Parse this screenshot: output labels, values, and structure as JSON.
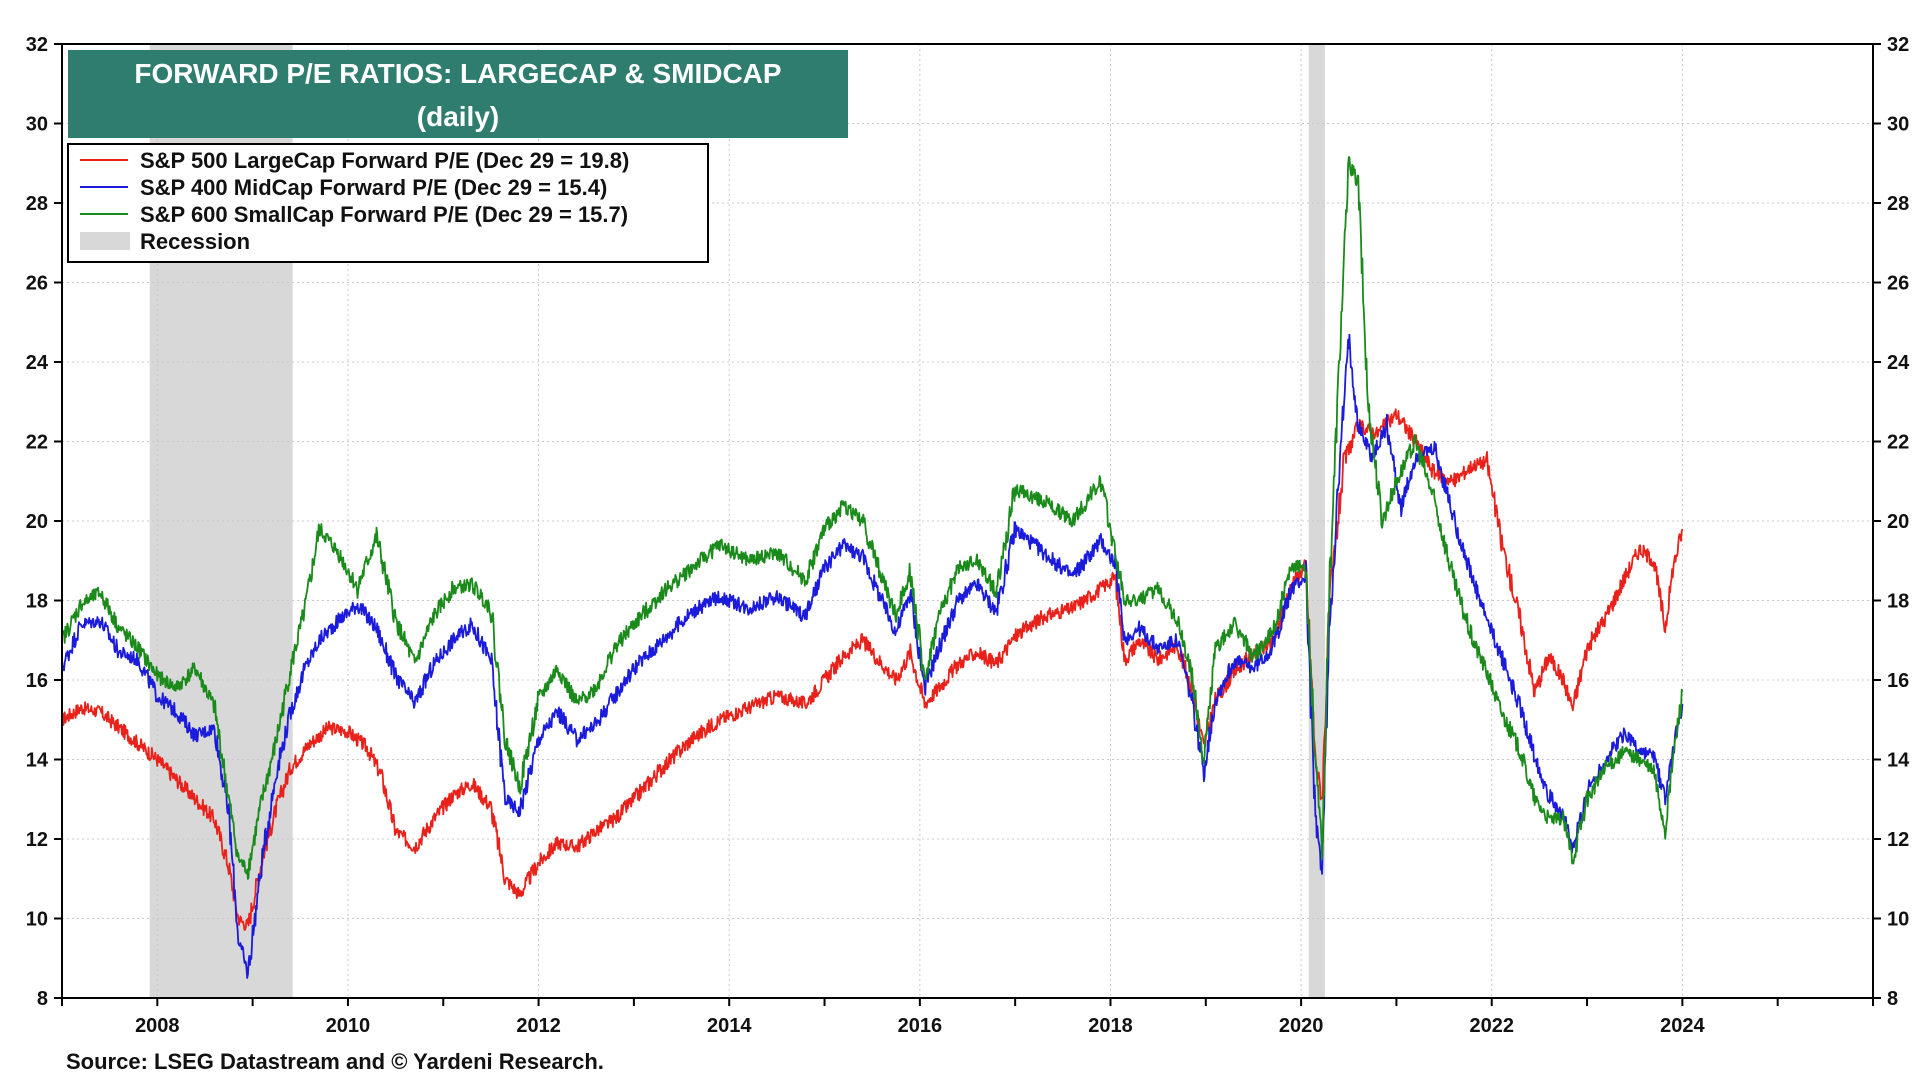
{
  "chart_data": {
    "type": "line",
    "title": "FORWARD P/E RATIOS: LARGECAP & SMIDCAP",
    "subtitle": "(daily)",
    "source": "Source: LSEG Datastream and © Yardeni Research.",
    "xlim": [
      2007.0,
      2026.0
    ],
    "ylim": [
      8,
      32
    ],
    "y_ticks": [
      8,
      10,
      12,
      14,
      16,
      18,
      20,
      22,
      24,
      26,
      28,
      30,
      32
    ],
    "x_ticks": [
      2008,
      2010,
      2012,
      2014,
      2016,
      2018,
      2020,
      2022,
      2024
    ],
    "x_tick_labels": [
      "2008",
      "2010",
      "2012",
      "2014",
      "2016",
      "2018",
      "2020",
      "2022",
      "2024"
    ],
    "grid": true,
    "legend_position": "top-left",
    "recessions": [
      {
        "start": 2007.92,
        "end": 2009.42
      },
      {
        "start": 2020.08,
        "end": 2020.25
      }
    ],
    "recession_label": "Recession",
    "recession_color": "#d8d8d8",
    "title_box_color": "#2e7d6e",
    "series": [
      {
        "name": "S&P 500 LargeCap Forward P/E (Dec 29 = 19.8)",
        "color": "#e8221b",
        "x": [
          2007.0,
          2007.2,
          2007.4,
          2007.6,
          2007.8,
          2008.0,
          2008.2,
          2008.4,
          2008.6,
          2008.75,
          2008.85,
          2008.95,
          2009.1,
          2009.25,
          2009.4,
          2009.6,
          2009.8,
          2010.0,
          2010.2,
          2010.35,
          2010.5,
          2010.7,
          2010.9,
          2011.1,
          2011.3,
          2011.5,
          2011.65,
          2011.8,
          2012.0,
          2012.2,
          2012.4,
          2012.6,
          2012.8,
          2013.0,
          2013.3,
          2013.6,
          2013.9,
          2014.2,
          2014.5,
          2014.8,
          2015.0,
          2015.2,
          2015.4,
          2015.6,
          2015.75,
          2015.9,
          2016.05,
          2016.2,
          2016.4,
          2016.6,
          2016.8,
          2017.0,
          2017.3,
          2017.6,
          2017.9,
          2018.05,
          2018.15,
          2018.3,
          2018.5,
          2018.7,
          2018.85,
          2018.98,
          2019.1,
          2019.3,
          2019.5,
          2019.7,
          2019.9,
          2020.05,
          2020.15,
          2020.22,
          2020.3,
          2020.45,
          2020.6,
          2020.8,
          2021.0,
          2021.2,
          2021.4,
          2021.6,
          2021.8,
          2021.95,
          2022.1,
          2022.3,
          2022.45,
          2022.6,
          2022.75,
          2022.85,
          2023.0,
          2023.2,
          2023.4,
          2023.55,
          2023.7,
          2023.82,
          2023.9,
          2024.0
        ],
        "values": [
          15.0,
          15.3,
          15.2,
          14.8,
          14.4,
          14.0,
          13.5,
          13.0,
          12.5,
          11.3,
          10.0,
          9.8,
          11.5,
          12.8,
          13.8,
          14.4,
          14.8,
          14.7,
          14.3,
          13.6,
          12.2,
          11.8,
          12.5,
          13.1,
          13.4,
          12.8,
          11.0,
          10.6,
          11.4,
          11.9,
          11.8,
          12.2,
          12.5,
          13.0,
          13.8,
          14.5,
          15.0,
          15.3,
          15.6,
          15.4,
          16.0,
          16.6,
          17.0,
          16.4,
          16.0,
          16.7,
          15.4,
          15.8,
          16.4,
          16.7,
          16.4,
          17.1,
          17.6,
          17.8,
          18.3,
          18.6,
          16.5,
          17.0,
          16.5,
          16.9,
          15.8,
          14.3,
          15.5,
          16.2,
          16.7,
          16.9,
          18.4,
          18.9,
          14.0,
          13.0,
          18.0,
          21.5,
          22.4,
          22.2,
          22.7,
          22.0,
          21.2,
          21.0,
          21.4,
          21.5,
          19.5,
          17.5,
          15.7,
          16.6,
          16.0,
          15.3,
          16.8,
          17.6,
          18.6,
          19.3,
          19.0,
          17.3,
          18.8,
          19.8
        ]
      },
      {
        "name": "S&P 400 MidCap Forward P/E (Dec 29 = 15.4)",
        "color": "#1b1bdb",
        "x": [
          2007.0,
          2007.2,
          2007.4,
          2007.6,
          2007.8,
          2008.0,
          2008.2,
          2008.4,
          2008.6,
          2008.75,
          2008.85,
          2008.95,
          2009.1,
          2009.25,
          2009.4,
          2009.55,
          2009.7,
          2009.9,
          2010.1,
          2010.3,
          2010.5,
          2010.7,
          2010.9,
          2011.1,
          2011.3,
          2011.5,
          2011.65,
          2011.8,
          2012.0,
          2012.2,
          2012.4,
          2012.6,
          2012.8,
          2013.0,
          2013.3,
          2013.6,
          2013.9,
          2014.2,
          2014.5,
          2014.8,
          2015.0,
          2015.2,
          2015.4,
          2015.6,
          2015.75,
          2015.9,
          2016.05,
          2016.2,
          2016.4,
          2016.6,
          2016.8,
          2017.0,
          2017.3,
          2017.6,
          2017.9,
          2018.05,
          2018.15,
          2018.3,
          2018.5,
          2018.7,
          2018.85,
          2018.98,
          2019.1,
          2019.3,
          2019.5,
          2019.7,
          2019.9,
          2020.05,
          2020.15,
          2020.22,
          2020.3,
          2020.45,
          2020.5,
          2020.6,
          2020.75,
          2020.9,
          2021.05,
          2021.2,
          2021.4,
          2021.6,
          2021.8,
          2021.95,
          2022.1,
          2022.3,
          2022.45,
          2022.6,
          2022.75,
          2022.85,
          2023.0,
          2023.2,
          2023.4,
          2023.55,
          2023.7,
          2023.82,
          2023.9,
          2024.0
        ],
        "values": [
          16.3,
          17.4,
          17.5,
          16.7,
          16.5,
          15.6,
          15.2,
          14.6,
          14.8,
          12.6,
          9.5,
          8.6,
          11.5,
          13.7,
          15.2,
          16.3,
          17.0,
          17.5,
          17.9,
          17.3,
          16.1,
          15.4,
          16.4,
          17.0,
          17.4,
          16.5,
          13.0,
          12.7,
          14.5,
          15.2,
          14.5,
          14.9,
          15.6,
          16.3,
          17.0,
          17.7,
          18.1,
          17.8,
          18.1,
          17.6,
          18.8,
          19.4,
          19.1,
          18.0,
          17.2,
          18.2,
          15.8,
          16.8,
          18.0,
          18.4,
          17.7,
          19.8,
          19.2,
          18.6,
          19.5,
          18.9,
          17.0,
          17.3,
          16.8,
          17.0,
          15.5,
          13.7,
          15.5,
          16.5,
          16.3,
          16.8,
          18.3,
          18.6,
          12.5,
          11.2,
          17.5,
          23.0,
          24.6,
          22.4,
          21.6,
          22.4,
          20.3,
          21.6,
          21.8,
          20.1,
          18.5,
          17.5,
          16.6,
          15.3,
          14.1,
          13.1,
          12.6,
          11.7,
          13.2,
          14.0,
          14.7,
          14.2,
          14.1,
          13.0,
          14.2,
          15.4
        ]
      },
      {
        "name": "S&P 600 SmallCap Forward P/E (Dec 29 = 15.7)",
        "color": "#1a8a1a",
        "x": [
          2007.0,
          2007.2,
          2007.4,
          2007.6,
          2007.8,
          2008.0,
          2008.2,
          2008.4,
          2008.6,
          2008.75,
          2008.85,
          2008.95,
          2009.1,
          2009.25,
          2009.4,
          2009.55,
          2009.7,
          2009.9,
          2010.1,
          2010.3,
          2010.5,
          2010.7,
          2010.9,
          2011.1,
          2011.3,
          2011.5,
          2011.65,
          2011.8,
          2012.0,
          2012.2,
          2012.4,
          2012.6,
          2012.8,
          2013.0,
          2013.3,
          2013.6,
          2013.9,
          2014.2,
          2014.5,
          2014.8,
          2015.0,
          2015.2,
          2015.4,
          2015.6,
          2015.75,
          2015.9,
          2016.05,
          2016.2,
          2016.4,
          2016.6,
          2016.8,
          2017.0,
          2017.3,
          2017.6,
          2017.9,
          2018.05,
          2018.15,
          2018.3,
          2018.5,
          2018.7,
          2018.85,
          2018.98,
          2019.1,
          2019.3,
          2019.5,
          2019.7,
          2019.9,
          2020.05,
          2020.15,
          2020.22,
          2020.3,
          2020.4,
          2020.5,
          2020.6,
          2020.7,
          2020.85,
          2021.0,
          2021.2,
          2021.4,
          2021.6,
          2021.8,
          2021.95,
          2022.1,
          2022.3,
          2022.45,
          2022.6,
          2022.75,
          2022.85,
          2023.0,
          2023.2,
          2023.4,
          2023.55,
          2023.7,
          2023.82,
          2023.9,
          2024.0
        ],
        "values": [
          17.0,
          17.9,
          18.2,
          17.3,
          16.8,
          16.1,
          15.8,
          16.3,
          15.3,
          13.0,
          11.5,
          11.2,
          13.0,
          14.5,
          16.3,
          17.8,
          19.8,
          19.2,
          18.3,
          19.6,
          17.5,
          16.4,
          17.6,
          18.3,
          18.4,
          17.8,
          14.5,
          13.3,
          15.5,
          16.3,
          15.4,
          15.8,
          16.8,
          17.4,
          18.2,
          18.8,
          19.4,
          19.0,
          19.2,
          18.5,
          19.8,
          20.4,
          20.0,
          18.6,
          17.6,
          18.8,
          16.0,
          17.6,
          18.8,
          19.0,
          18.2,
          20.8,
          20.5,
          20.0,
          21.0,
          19.2,
          18.0,
          18.0,
          18.3,
          17.5,
          16.2,
          14.0,
          16.8,
          17.4,
          16.6,
          17.2,
          18.8,
          18.9,
          14.0,
          11.7,
          18.5,
          24.0,
          29.0,
          28.5,
          23.0,
          20.0,
          21.0,
          22.0,
          20.5,
          18.5,
          17.0,
          16.2,
          15.2,
          14.2,
          13.0,
          12.5,
          12.5,
          11.5,
          13.0,
          13.8,
          14.2,
          14.0,
          13.7,
          12.2,
          14.0,
          15.7
        ]
      }
    ]
  }
}
